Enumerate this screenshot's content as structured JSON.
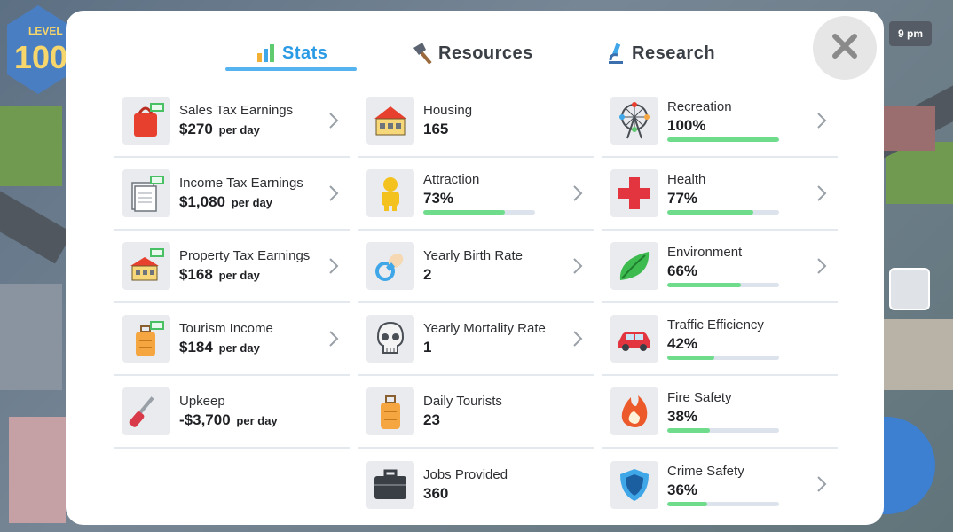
{
  "hud": {
    "level_label": "LEVEL",
    "level_value": "100",
    "clock": "9 pm"
  },
  "tabs": [
    {
      "label": "Stats",
      "icon": "bar-chart-icon",
      "active": true
    },
    {
      "label": "Resources",
      "icon": "axe-icon",
      "active": false
    },
    {
      "label": "Research",
      "icon": "microscope-icon",
      "active": false
    }
  ],
  "columns": {
    "left": [
      {
        "label": "Sales Tax Earnings",
        "value": "$270",
        "unit": "per day",
        "icon": "shopping-bag-money-icon"
      },
      {
        "label": "Income Tax Earnings",
        "value": "$1,080",
        "unit": "per day",
        "icon": "document-money-icon"
      },
      {
        "label": "Property Tax Earnings",
        "value": "$168",
        "unit": "per day",
        "icon": "house-money-icon"
      },
      {
        "label": "Tourism Income",
        "value": "$184",
        "unit": "per day",
        "icon": "suitcase-money-icon"
      },
      {
        "label": "Upkeep",
        "value": "-$3,700",
        "unit": "per day",
        "icon": "screwdriver-icon"
      }
    ],
    "middle": [
      {
        "label": "Housing",
        "value": "165",
        "icon": "house-icon"
      },
      {
        "label": "Attraction",
        "value": "73%",
        "progress": 0.73,
        "icon": "person-icon"
      },
      {
        "label": "Yearly Birth Rate",
        "value": "2",
        "icon": "pacifier-icon"
      },
      {
        "label": "Yearly Mortality Rate",
        "value": "1",
        "icon": "skull-icon"
      },
      {
        "label": "Daily Tourists",
        "value": "23",
        "icon": "suitcase-icon"
      },
      {
        "label": "Jobs Provided",
        "value": "360",
        "icon": "briefcase-icon"
      }
    ],
    "right": [
      {
        "label": "Recreation",
        "value": "100%",
        "progress": 1.0,
        "icon": "ferris-wheel-icon"
      },
      {
        "label": "Health",
        "value": "77%",
        "progress": 0.77,
        "icon": "red-cross-icon"
      },
      {
        "label": "Environment",
        "value": "66%",
        "progress": 0.66,
        "icon": "leaf-icon"
      },
      {
        "label": "Traffic Efficiency",
        "value": "42%",
        "progress": 0.42,
        "icon": "car-icon"
      },
      {
        "label": "Fire Safety",
        "value": "38%",
        "progress": 0.38,
        "icon": "flame-icon"
      },
      {
        "label": "Crime Safety",
        "value": "36%",
        "progress": 0.36,
        "icon": "shield-icon"
      }
    ]
  },
  "colors": {
    "active_tab": "#2b9be6",
    "progress_fill": "#6fdc8c",
    "progress_track": "#dde3ec"
  }
}
